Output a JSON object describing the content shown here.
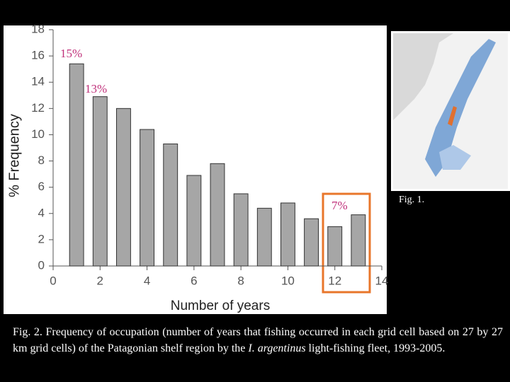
{
  "chart_data": {
    "type": "bar",
    "x": [
      1,
      2,
      3,
      4,
      5,
      6,
      7,
      8,
      9,
      10,
      11,
      12,
      13
    ],
    "values": [
      15.4,
      12.9,
      12.0,
      10.4,
      9.3,
      6.9,
      7.8,
      5.5,
      4.4,
      4.8,
      3.6,
      3.0,
      3.9
    ],
    "color": "#a6a6a6",
    "xlim": [
      0,
      14
    ],
    "xticks": [
      0,
      2,
      4,
      6,
      8,
      10,
      12,
      14
    ],
    "ylim": [
      0,
      18
    ],
    "yticks": [
      0,
      2,
      4,
      6,
      8,
      10,
      12,
      14,
      16,
      18
    ],
    "xlabel": "Number of years",
    "ylabel": "% Frequency",
    "annotations": [
      "15%",
      "13%",
      "7%"
    ]
  },
  "slide": {
    "fig1_label": "Fig. 1.",
    "caption_before": "Fig. 2.  Frequency of occupation (number of years that fishing occurred in each grid cell based on 27 by 27 km grid cells) of the Patagonian shelf region by the ",
    "caption_italic": "I. argentinus",
    "caption_after": " light-fishing fleet, 1993-2005."
  }
}
